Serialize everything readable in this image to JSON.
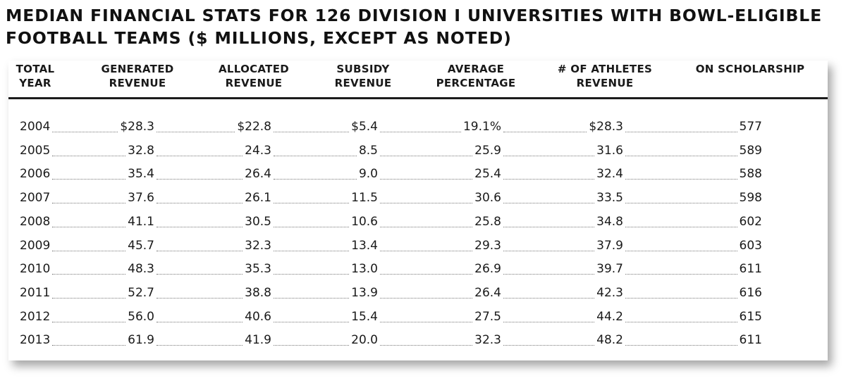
{
  "title": {
    "line1": "MEDIAN FINANCIAL STATS FOR 126 DIVISION I UNIVERSITIES WITH BOWL-ELIGIBLE",
    "line2": "FOOTBALL TEAMS ($ MILLIONS, EXCEPT AS NOTED)"
  },
  "headers": {
    "total_year": [
      "TOTAL",
      "YEAR"
    ],
    "generated": [
      "GENERATED",
      "REVENUE"
    ],
    "allocated": [
      "ALLOCATED",
      "REVENUE"
    ],
    "subsidy": [
      "SUBSIDY",
      "REVENUE"
    ],
    "average": [
      "AVERAGE",
      "PERCENTAGE"
    ],
    "athletes": [
      "# OF ATHLETES",
      "REVENUE"
    ],
    "scholarship": [
      "",
      "ON SCHOLARSHIP"
    ]
  },
  "rows": [
    [
      "2004",
      "$28.3",
      "$22.8",
      "$5.4",
      "19.1%",
      "$28.3",
      "577"
    ],
    [
      "2005",
      "32.8",
      "24.3",
      "8.5",
      "25.9",
      "31.6",
      "589"
    ],
    [
      "2006",
      "35.4",
      "26.4",
      "9.0",
      "25.4",
      "32.4",
      "588"
    ],
    [
      "2007",
      "37.6",
      "26.1",
      "11.5",
      "30.6",
      "33.5",
      "598"
    ],
    [
      "2008",
      "41.1",
      "30.5",
      "10.6",
      "25.8",
      "34.8",
      "602"
    ],
    [
      "2009",
      "45.7",
      "32.3",
      "13.4",
      "29.3",
      "37.9",
      "603"
    ],
    [
      "2010",
      "48.3",
      "35.3",
      "13.0",
      "26.9",
      "39.7",
      "611"
    ],
    [
      "2011",
      "52.7",
      "38.8",
      "13.9",
      "26.4",
      "42.3",
      "616"
    ],
    [
      "2012",
      "56.0",
      "40.6",
      "15.4",
      "27.5",
      "44.2",
      "615"
    ],
    [
      "2013",
      "61.9",
      "41.9",
      "20.0",
      "32.3",
      "48.2",
      "611"
    ]
  ]
}
